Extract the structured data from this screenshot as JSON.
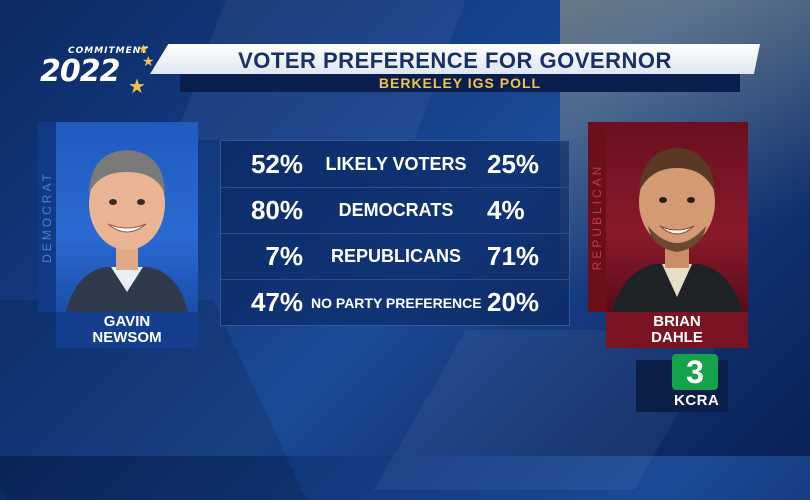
{
  "brand": {
    "commitment": "COMMITMENT",
    "year": "2022",
    "accent": "#f2c14e"
  },
  "header": {
    "title": "VOTER PREFERENCE FOR GOVERNOR",
    "subtitle": "BERKELEY IGS POLL"
  },
  "candidates": {
    "left": {
      "party": "DEMOCRAT",
      "name_line1": "GAVIN",
      "name_line2": "NEWSOM",
      "color": "#153f8e"
    },
    "right": {
      "party": "REPUBLICAN",
      "name_line1": "BRIAN",
      "name_line2": "DAHLE",
      "color": "#7a1322"
    }
  },
  "rows": [
    {
      "label": "LIKELY VOTERS",
      "left": "52%",
      "right": "25%"
    },
    {
      "label": "DEMOCRATS",
      "left": "80%",
      "right": "4%"
    },
    {
      "label": "REPUBLICANS",
      "left": "7%",
      "right": "71%"
    },
    {
      "label": "NO PARTY PREFERENCE",
      "left": "47%",
      "right": "20%"
    }
  ],
  "station": {
    "channel": "3",
    "call_sign": "KCRA"
  }
}
